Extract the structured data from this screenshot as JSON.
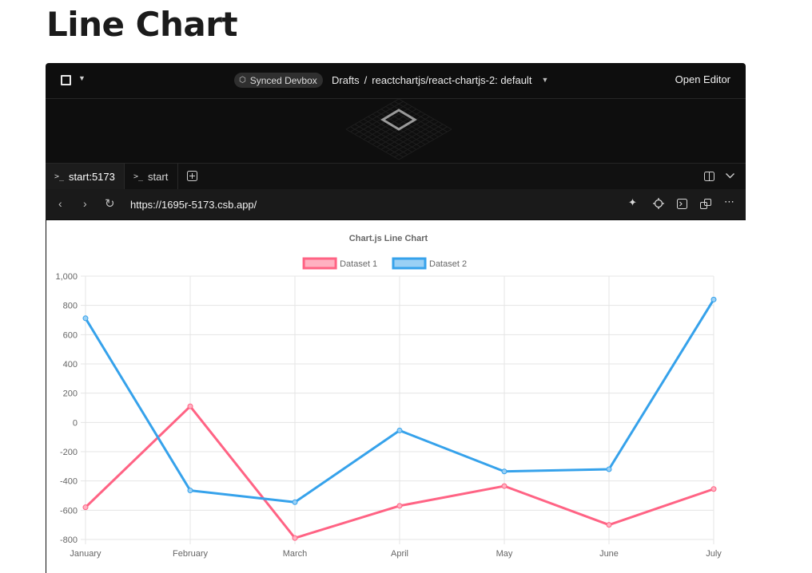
{
  "page": {
    "heading": "Line Chart"
  },
  "topbar": {
    "synced_label": "Synced Devbox",
    "breadcrumb": {
      "root": "Drafts",
      "separator": "/",
      "sandbox": "reactchartjs/react-chartjs-2: default"
    },
    "open_editor_label": "Open Editor"
  },
  "tabs": [
    {
      "label": "start:5173",
      "active": true
    },
    {
      "label": "start",
      "active": false
    }
  ],
  "address": {
    "url": "https://1695r-5173.csb.app/"
  },
  "icons": {
    "sidebar_toggle": "square-icon",
    "chevron": "chevron-down-icon",
    "devbox": "cube-icon",
    "terminal": "terminal-icon",
    "add_tab": "plus-square-icon",
    "split": "split-view-icon",
    "back": "arrow-left-icon",
    "forward": "arrow-right-icon",
    "reload": "reload-icon",
    "sparkle": "sparkle-icon",
    "crosshair": "crosshair-icon",
    "console": "console-icon",
    "popout": "popout-icon",
    "more": "more-icon"
  },
  "chart_data": {
    "type": "line",
    "title": "Chart.js Line Chart",
    "categories": [
      "January",
      "February",
      "March",
      "April",
      "May",
      "June",
      "July"
    ],
    "ylim": [
      -800,
      1000
    ],
    "yticks": [
      "1,000",
      "800",
      "600",
      "400",
      "200",
      "0",
      "-200",
      "-400",
      "-600",
      "-800"
    ],
    "grid": true,
    "legend_position": "top",
    "series": [
      {
        "name": "Dataset 1",
        "color": "#ff6384",
        "fill": "#ffb1c1",
        "values": [
          -580,
          110,
          -790,
          -570,
          -435,
          -700,
          -455
        ]
      },
      {
        "name": "Dataset 2",
        "color": "#36a2eb",
        "fill": "#9ad0f5",
        "values": [
          712,
          -465,
          -545,
          -55,
          -335,
          -320,
          840
        ]
      }
    ]
  }
}
